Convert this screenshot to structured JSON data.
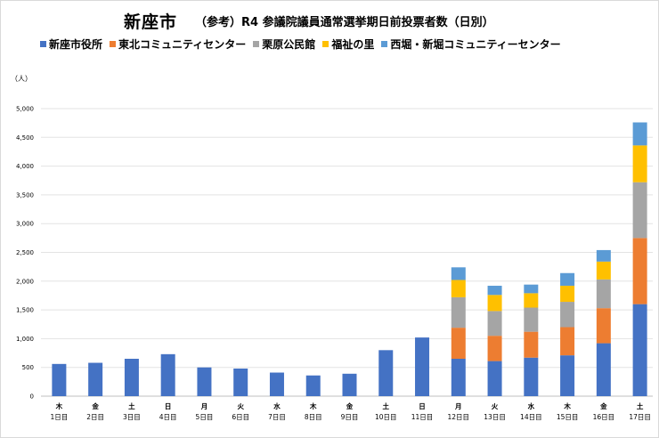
{
  "title": {
    "main": "新座市",
    "sub": "（参考）R4 参議院議員通常選挙期日前投票者数（日別）"
  },
  "unit_label": "（人）",
  "chart_data": {
    "type": "bar",
    "stacked": true,
    "title": "新座市 （参考）R4 参議院議員通常選挙期日前投票者数（日別）",
    "ylabel": "（人）",
    "ylim": [
      0,
      5000
    ],
    "yticks": [
      0,
      500,
      1000,
      1500,
      2000,
      2500,
      3000,
      3500,
      4000,
      4500,
      5000
    ],
    "ytick_labels": [
      "0",
      "500",
      "1,000",
      "1,500",
      "2,000",
      "2,500",
      "3,000",
      "3,500",
      "4,000",
      "4,500",
      "5,000"
    ],
    "legend_position": "top",
    "grid": true,
    "categories": [
      {
        "day": "木",
        "label": "1日目"
      },
      {
        "day": "金",
        "label": "2日目"
      },
      {
        "day": "土",
        "label": "3日目"
      },
      {
        "day": "日",
        "label": "4日目"
      },
      {
        "day": "月",
        "label": "5日目"
      },
      {
        "day": "火",
        "label": "6日目"
      },
      {
        "day": "水",
        "label": "7日目"
      },
      {
        "day": "木",
        "label": "8日目"
      },
      {
        "day": "金",
        "label": "9日目"
      },
      {
        "day": "土",
        "label": "10日目"
      },
      {
        "day": "日",
        "label": "11日目"
      },
      {
        "day": "月",
        "label": "12日目"
      },
      {
        "day": "火",
        "label": "13日目"
      },
      {
        "day": "水",
        "label": "14日目"
      },
      {
        "day": "木",
        "label": "15日目"
      },
      {
        "day": "金",
        "label": "16日目"
      },
      {
        "day": "土",
        "label": "17日目"
      }
    ],
    "series": [
      {
        "name": "新座市役所",
        "color": "#4472C4",
        "values": [
          560,
          580,
          650,
          730,
          500,
          480,
          410,
          360,
          390,
          800,
          1020,
          650,
          610,
          670,
          710,
          920,
          1600
        ]
      },
      {
        "name": "東北コミュニティセンター",
        "color": "#ED7D31",
        "values": [
          0,
          0,
          0,
          0,
          0,
          0,
          0,
          0,
          0,
          0,
          0,
          540,
          440,
          450,
          490,
          610,
          1150
        ]
      },
      {
        "name": "栗原公民館",
        "color": "#A5A5A5",
        "values": [
          0,
          0,
          0,
          0,
          0,
          0,
          0,
          0,
          0,
          0,
          0,
          530,
          430,
          420,
          440,
          500,
          970
        ]
      },
      {
        "name": "福祉の里",
        "color": "#FFC000",
        "values": [
          0,
          0,
          0,
          0,
          0,
          0,
          0,
          0,
          0,
          0,
          0,
          300,
          280,
          250,
          280,
          310,
          640
        ]
      },
      {
        "name": "西堀・新堀コミュニティーセンター",
        "color": "#5B9BD5",
        "values": [
          0,
          0,
          0,
          0,
          0,
          0,
          0,
          0,
          0,
          0,
          0,
          220,
          160,
          150,
          220,
          200,
          400
        ]
      }
    ]
  }
}
